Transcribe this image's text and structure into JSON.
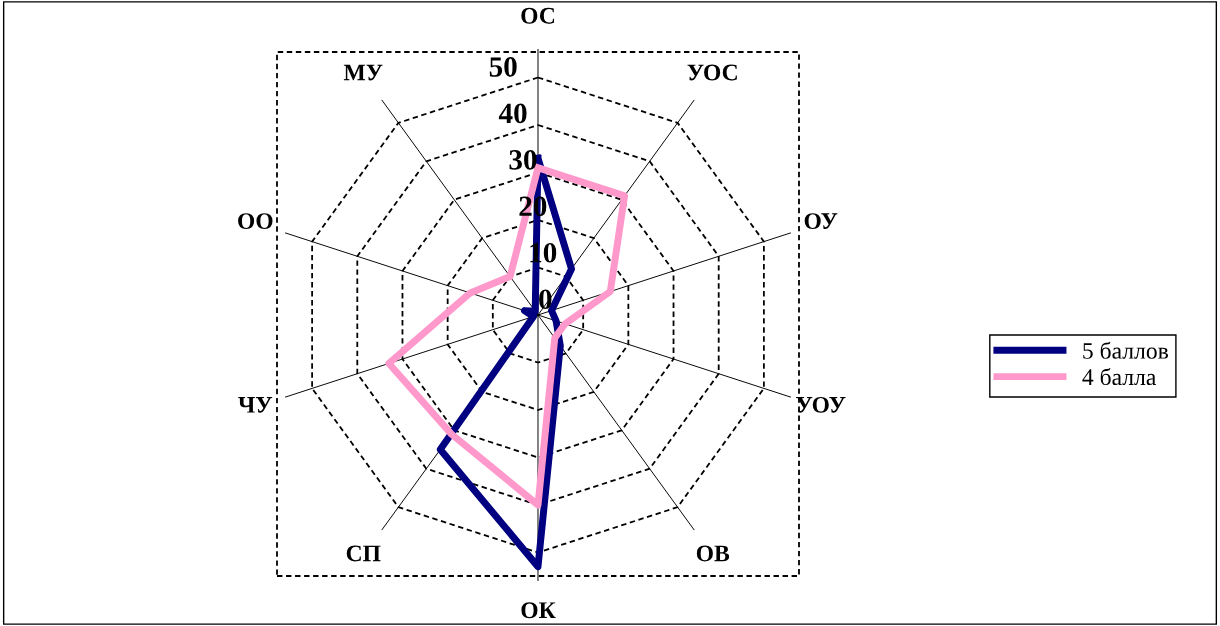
{
  "chart_data": {
    "type": "radar",
    "categories": [
      "ОС",
      "УОС",
      "ОУ",
      "УОУ",
      "ОВ",
      "ОК",
      "СП",
      "ЧУ",
      "ОО",
      "МУ"
    ],
    "series": [
      {
        "name": "5 баллов",
        "color": "#000080",
        "values": [
          33,
          12,
          3,
          4,
          8,
          53,
          35,
          1,
          3,
          1
        ]
      },
      {
        "name": "4 балла",
        "color": "#ff99cc",
        "values": [
          31,
          31,
          16,
          6,
          6,
          40,
          31,
          33,
          15,
          10
        ]
      }
    ],
    "ylim": [
      0,
      56
    ],
    "yticks": [
      0,
      10,
      20,
      30,
      40,
      50
    ],
    "grid": true,
    "legend": "right",
    "marker": "none",
    "line_style": "solid"
  }
}
